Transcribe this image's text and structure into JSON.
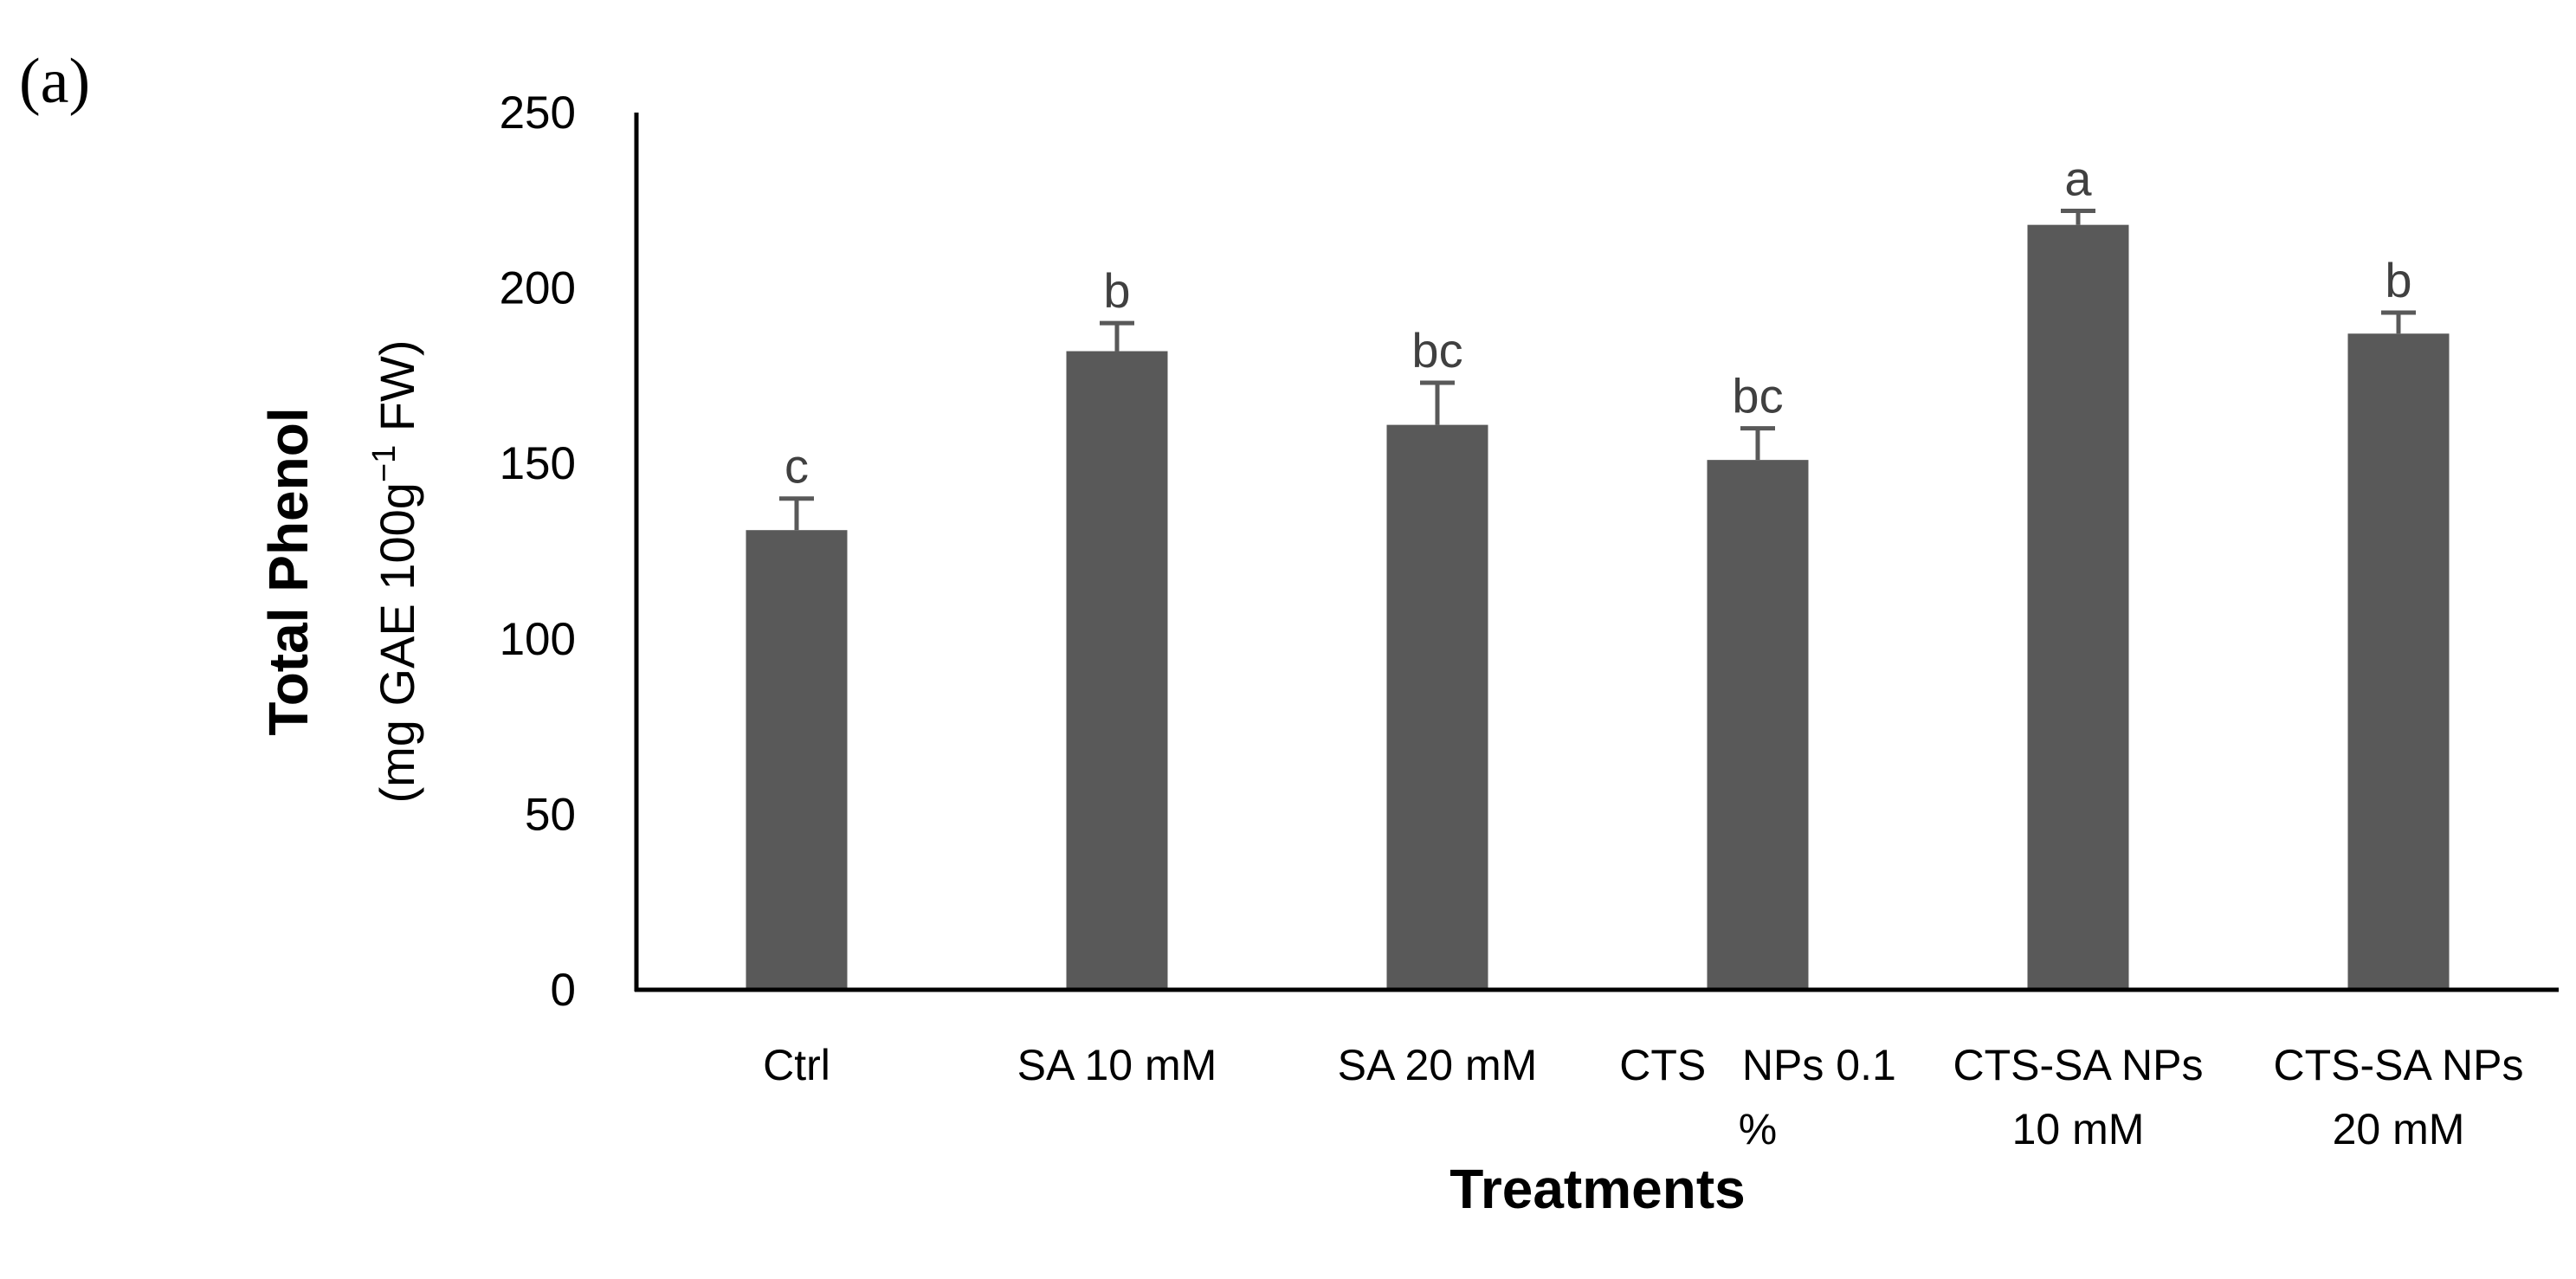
{
  "panel_label": "(a)",
  "chart_data": {
    "type": "bar",
    "title": "",
    "xlabel": "Treatments",
    "ylabel": "Total Phenol",
    "ylabel_unit_prefix": "(mg GAE 100g",
    "ylabel_unit_sup": "−1",
    "ylabel_unit_suffix": " FW)",
    "ylim": [
      0,
      250
    ],
    "yticks": [
      0,
      50,
      100,
      150,
      200,
      250
    ],
    "grid": false,
    "bar_color": "#595959",
    "error_color": "#595959",
    "sig_color": "#404040",
    "categories": [
      [
        "Ctrl"
      ],
      [
        "SA 10 mM"
      ],
      [
        "SA 20 mM"
      ],
      [
        "CTS   NPs 0.1",
        "%"
      ],
      [
        "CTS-SA NPs",
        "10 mM"
      ],
      [
        "CTS-SA NPs",
        "20 mM"
      ]
    ],
    "values": [
      131,
      182,
      161,
      151,
      218,
      187
    ],
    "errors": [
      9,
      8,
      12,
      9,
      4,
      6
    ],
    "significance": [
      "c",
      "b",
      "bc",
      "bc",
      "a",
      "b"
    ]
  }
}
